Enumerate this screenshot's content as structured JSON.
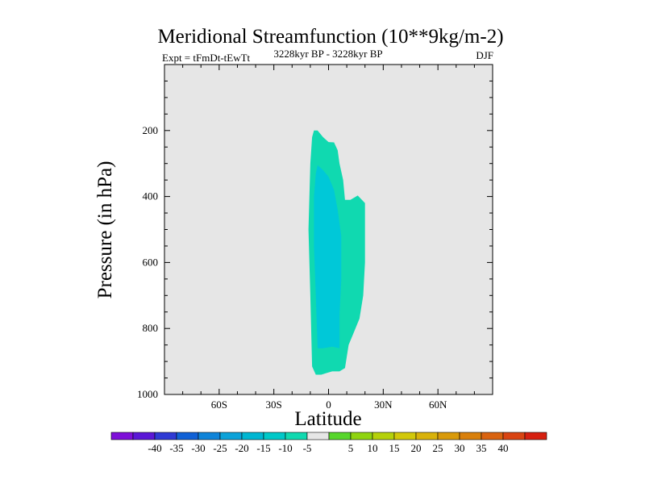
{
  "chart_data": {
    "type": "contour",
    "title": "Meridional Streamfunction (10**9kg/m-2)",
    "subtitle_left": "Expt = tFmDt-tEwTt",
    "subtitle_center": "3228kyr BP - 3228kyr BP",
    "subtitle_right": "DJF",
    "xlabel": "Latitude",
    "ylabel": "Pressure (in hPa)",
    "xlim": [
      -90,
      90
    ],
    "ylim": [
      0,
      1000
    ],
    "y_inverted": true,
    "x_ticks": [
      {
        "value": -60,
        "label": "60S"
      },
      {
        "value": -30,
        "label": "30S"
      },
      {
        "value": 0,
        "label": "0"
      },
      {
        "value": 30,
        "label": "30N"
      },
      {
        "value": 60,
        "label": "60N"
      }
    ],
    "y_ticks": [
      {
        "value": 200,
        "label": "200"
      },
      {
        "value": 400,
        "label": "400"
      },
      {
        "value": 600,
        "label": "600"
      },
      {
        "value": 800,
        "label": "800"
      },
      {
        "value": 1000,
        "label": "1000"
      }
    ],
    "background_color": "#e6e6e6",
    "contour_regions": [
      {
        "name": "level -5 to -10",
        "color": "#10d9b0",
        "points": [
          [
            -8,
            200
          ],
          [
            -6,
            200
          ],
          [
            -3,
            220
          ],
          [
            0,
            235
          ],
          [
            3,
            236
          ],
          [
            5,
            260
          ],
          [
            6,
            300
          ],
          [
            8,
            350
          ],
          [
            9,
            410
          ],
          [
            12,
            410
          ],
          [
            16,
            397
          ],
          [
            20,
            420
          ],
          [
            20,
            600
          ],
          [
            19,
            700
          ],
          [
            17,
            770
          ],
          [
            14,
            810
          ],
          [
            11,
            850
          ],
          [
            9,
            920
          ],
          [
            6,
            930
          ],
          [
            2,
            930
          ],
          [
            -1,
            935
          ],
          [
            -4,
            940
          ],
          [
            -7,
            940
          ],
          [
            -9,
            915
          ],
          [
            -10,
            700
          ],
          [
            -11,
            500
          ],
          [
            -10,
            300
          ],
          [
            -9,
            220
          ]
        ]
      },
      {
        "name": "level -10 to -15",
        "color": "#00c8d8",
        "points": [
          [
            -6,
            305
          ],
          [
            -3,
            320
          ],
          [
            0,
            340
          ],
          [
            3,
            380
          ],
          [
            5,
            440
          ],
          [
            7,
            520
          ],
          [
            7,
            650
          ],
          [
            6,
            760
          ],
          [
            6,
            860
          ],
          [
            2,
            855
          ],
          [
            -3,
            860
          ],
          [
            -6,
            860
          ],
          [
            -7,
            700
          ],
          [
            -8,
            550
          ],
          [
            -8,
            400
          ],
          [
            -7,
            330
          ]
        ]
      }
    ],
    "colorbar": {
      "colors": [
        "#7e0fd8",
        "#5b17d6",
        "#2f3ad4",
        "#1061d6",
        "#0f84d9",
        "#0ba2d9",
        "#00b6d2",
        "#00c8c8",
        "#10d9b0",
        "#e6e6e6",
        "#57d62c",
        "#8fd410",
        "#b5d10a",
        "#d2c80a",
        "#d9b20a",
        "#d99a0a",
        "#d9800c",
        "#d96310",
        "#d94412",
        "#d62010"
      ],
      "labels": [
        "-40",
        "-35",
        "-30",
        "-25",
        "-20",
        "-15",
        "-10",
        "-5",
        "5",
        "10",
        "15",
        "20",
        "25",
        "30",
        "35",
        "40"
      ]
    }
  }
}
